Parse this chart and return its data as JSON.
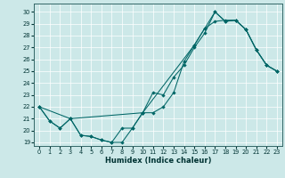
{
  "xlabel": "Humidex (Indice chaleur)",
  "bg_color": "#cce8e8",
  "line_color": "#006666",
  "xlim": [
    -0.5,
    23.5
  ],
  "ylim": [
    18.7,
    30.7
  ],
  "yticks": [
    19,
    20,
    21,
    22,
    23,
    24,
    25,
    26,
    27,
    28,
    29,
    30
  ],
  "xticks": [
    0,
    1,
    2,
    3,
    4,
    5,
    6,
    7,
    8,
    9,
    10,
    11,
    12,
    13,
    14,
    15,
    16,
    17,
    18,
    19,
    20,
    21,
    22,
    23
  ],
  "line1_x": [
    0,
    1,
    2,
    3,
    4,
    5,
    6,
    7,
    8,
    9,
    10,
    11,
    12,
    13,
    14,
    15,
    16,
    17,
    18,
    19,
    20,
    21,
    22,
    23
  ],
  "line1_y": [
    22.0,
    20.8,
    20.2,
    21.0,
    19.6,
    19.5,
    19.2,
    19.0,
    19.0,
    20.2,
    21.5,
    23.2,
    23.0,
    24.5,
    25.5,
    27.0,
    28.2,
    30.0,
    29.2,
    29.3,
    28.5,
    26.8,
    25.5,
    25.0
  ],
  "line2_x": [
    0,
    1,
    2,
    3,
    4,
    5,
    6,
    7,
    8,
    9,
    10,
    11,
    12,
    13,
    14,
    15,
    16,
    17,
    18,
    19,
    20,
    21,
    22,
    23
  ],
  "line2_y": [
    22.0,
    20.8,
    20.2,
    21.0,
    19.6,
    19.5,
    19.2,
    19.0,
    20.2,
    20.2,
    21.5,
    21.5,
    22.0,
    23.2,
    25.8,
    27.2,
    28.6,
    29.2,
    29.3,
    29.3,
    28.5,
    26.8,
    25.5,
    25.0
  ],
  "line3_x": [
    0,
    3,
    10,
    15,
    16,
    17,
    18,
    19,
    20,
    21,
    22,
    23
  ],
  "line3_y": [
    22.0,
    21.0,
    21.5,
    27.2,
    28.6,
    30.0,
    29.2,
    29.3,
    28.5,
    26.8,
    25.5,
    25.0
  ]
}
